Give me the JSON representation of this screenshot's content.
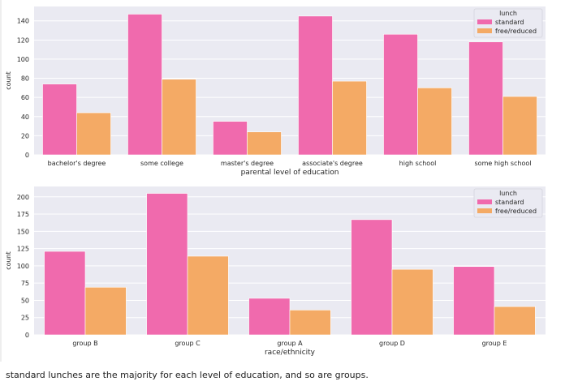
{
  "chart_data": [
    {
      "type": "bar",
      "xlabel": "parental level of education",
      "ylabel": "count",
      "ylim": [
        0,
        155
      ],
      "yticks": [
        0,
        20,
        40,
        60,
        80,
        100,
        120,
        140
      ],
      "grid": true,
      "legend": {
        "title": "lunch",
        "placement": "top-right"
      },
      "categories": [
        "bachelor's degree",
        "some college",
        "master's degree",
        "associate's degree",
        "high school",
        "some high school"
      ],
      "series": [
        {
          "name": "standard",
          "color": "#f06aad",
          "values": [
            74,
            147,
            35,
            145,
            126,
            118
          ]
        },
        {
          "name": "free/reduced",
          "color": "#f4aa65",
          "values": [
            44,
            79,
            24,
            77,
            70,
            61
          ]
        }
      ]
    },
    {
      "type": "bar",
      "xlabel": "race/ethnicity",
      "ylabel": "count",
      "ylim": [
        0,
        215
      ],
      "yticks": [
        0,
        25,
        50,
        75,
        100,
        125,
        150,
        175,
        200
      ],
      "grid": true,
      "legend": {
        "title": "lunch",
        "placement": "top-right"
      },
      "categories": [
        "group B",
        "group C",
        "group A",
        "group D",
        "group E"
      ],
      "series": [
        {
          "name": "standard",
          "color": "#f06aad",
          "values": [
            121,
            205,
            53,
            167,
            99
          ]
        },
        {
          "name": "free/reduced",
          "color": "#f4aa65",
          "values": [
            69,
            114,
            36,
            95,
            41
          ]
        }
      ]
    }
  ],
  "caption": "standard lunches are the majority for each level of education, and so are groups.",
  "colors": {
    "plot_background": "#eaeaf2",
    "grid": "#ffffff"
  }
}
